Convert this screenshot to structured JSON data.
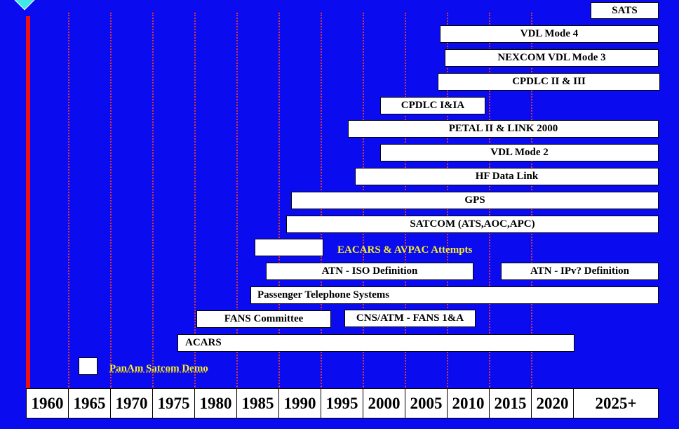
{
  "timeline": {
    "tick_labels": [
      "1960",
      "1965",
      "1970",
      "1975",
      "1980",
      "1985",
      "1990",
      "1995",
      "2000",
      "2005",
      "2010",
      "2015",
      "2020",
      "2025+"
    ],
    "bars": [
      {
        "label": "SATS"
      },
      {
        "label": "VDL Mode 4"
      },
      {
        "label": "NEXCOM VDL Mode 3"
      },
      {
        "label": "CPDLC II & III"
      },
      {
        "label": "CPDLC I&IA"
      },
      {
        "label": "PETAL II & LINK 2000"
      },
      {
        "label": "VDL Mode 2"
      },
      {
        "label": "HF Data Link"
      },
      {
        "label": "GPS"
      },
      {
        "label": "SATCOM (ATS,AOC,APC)"
      },
      {
        "label": ""
      },
      {
        "label": "ATN - ISO Definition"
      },
      {
        "label": "ATN - IPv? Definition"
      },
      {
        "label": "Passenger Telephone Systems"
      },
      {
        "label": "FANS Committee"
      },
      {
        "label": "CNS/ATM - FANS 1&A"
      },
      {
        "label": "ACARS"
      },
      {
        "label": ""
      }
    ],
    "callouts": [
      {
        "label": "EACARS & AVPAC Attempts"
      },
      {
        "label": "PanAm Satcom Demo"
      }
    ]
  },
  "colors": {
    "background": "#0b0bf0",
    "gridline": "#e03a3a",
    "accent_bar": "#ee1111",
    "label_yellow": "#f4ee2a"
  }
}
